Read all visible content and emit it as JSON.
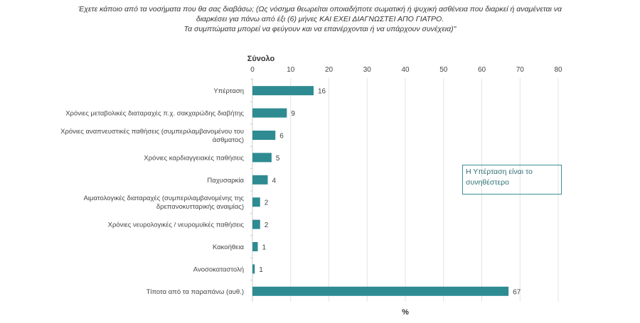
{
  "question": {
    "line1": "Έχετε κάποιο από τα νοσήματα που θα σας διαβάσω; (Ως νόσημα θεωρείται οποιαδήποτε σωματική ή ψυχική ασθένεια που διαρκεί ή αναμένεται να",
    "line2": "διαρκέσει για πάνω από έξι (6) μήνες ΚΑΙ ΕΧΕΙ ΔΙΑΓΝΩΣΤΕΙ ΑΠΟ ΓΙΑΤΡΟ.",
    "line3": "Τα συμπτώματα μπορεί να φεύγουν και να επανέρχονται ή να υπάρχουν συνέχεια)\""
  },
  "annotation": "Η Υπέρταση είναι το συνηθέστερο",
  "colors": {
    "bar": "#2e8b92",
    "grid": "#e4e4e4",
    "text": "#444444"
  },
  "chart_data": {
    "type": "bar",
    "orientation": "horizontal",
    "title": "Σύνολο",
    "xlabel": "%",
    "xlim": [
      0,
      80
    ],
    "xticks": [
      0,
      10,
      20,
      30,
      40,
      50,
      60,
      70,
      80
    ],
    "grid": true,
    "categories": [
      "Υπέρταση",
      "Χρόνιες μεταβολικές διαταραχές π.χ. σακχαρώδης διαβήτης",
      "Χρόνιες αναπνευστικές παθήσεις (συμπεριλαμβανομένου του άσθματος)",
      "Χρόνιες καρδιαγγειακές παθήσεις",
      "Παχυσαρκία",
      "Αιματολογικές διαταραχές (συμπεριλαμβανομένης της δρεπανοκυτταρικής αναιμίας)",
      "Χρόνιες νευρολογικές / νευρομυϊκές παθήσεις",
      "Κακοήθεια",
      "Ανοσοκαταστολή",
      "Τίποτα από τα παραπάνω (αυθ.)"
    ],
    "values": [
      16,
      9,
      6,
      5,
      4,
      2,
      2,
      1.4,
      0.6,
      67
    ],
    "data_labels": [
      "16",
      "9",
      "6",
      "5",
      "4",
      "2",
      "2",
      "1",
      "1",
      "67"
    ]
  }
}
